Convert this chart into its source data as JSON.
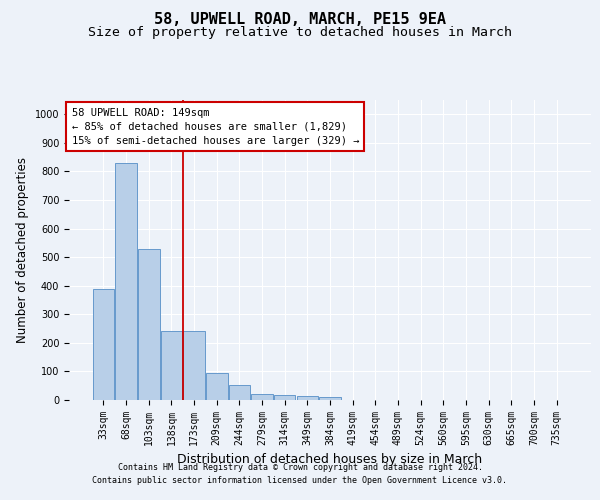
{
  "title": "58, UPWELL ROAD, MARCH, PE15 9EA",
  "subtitle": "Size of property relative to detached houses in March",
  "xlabel": "Distribution of detached houses by size in March",
  "ylabel": "Number of detached properties",
  "categories": [
    "33sqm",
    "68sqm",
    "103sqm",
    "138sqm",
    "173sqm",
    "209sqm",
    "244sqm",
    "279sqm",
    "314sqm",
    "349sqm",
    "384sqm",
    "419sqm",
    "454sqm",
    "489sqm",
    "524sqm",
    "560sqm",
    "595sqm",
    "630sqm",
    "665sqm",
    "700sqm",
    "735sqm"
  ],
  "bar_heights": [
    390,
    830,
    530,
    240,
    240,
    95,
    52,
    20,
    17,
    15,
    10,
    0,
    0,
    0,
    0,
    0,
    0,
    0,
    0,
    0,
    0
  ],
  "bar_color": "#b8cfe8",
  "bar_edge_color": "#6699cc",
  "vline_x": 3.5,
  "vline_color": "#cc0000",
  "annotation_text": "58 UPWELL ROAD: 149sqm\n← 85% of detached houses are smaller (1,829)\n15% of semi-detached houses are larger (329) →",
  "annotation_box_facecolor": "#ffffff",
  "annotation_box_edgecolor": "#cc0000",
  "ylim": [
    0,
    1050
  ],
  "yticks": [
    0,
    100,
    200,
    300,
    400,
    500,
    600,
    700,
    800,
    900,
    1000
  ],
  "footer1": "Contains HM Land Registry data © Crown copyright and database right 2024.",
  "footer2": "Contains public sector information licensed under the Open Government Licence v3.0.",
  "bg_color": "#edf2f9",
  "grid_color": "#ffffff",
  "title_fontsize": 11,
  "subtitle_fontsize": 9.5,
  "tick_fontsize": 7,
  "ylabel_fontsize": 8.5,
  "xlabel_fontsize": 9,
  "annotation_fontsize": 7.5,
  "footer_fontsize": 6
}
